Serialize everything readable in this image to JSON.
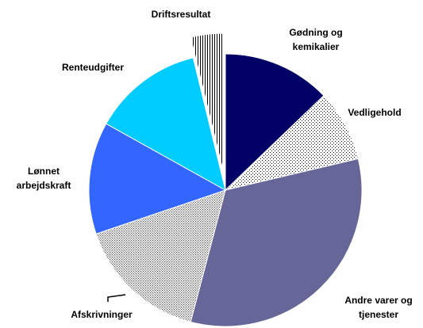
{
  "chart_data": {
    "type": "pie",
    "categories": [
      "Gødning og kemikalier",
      "Vedligehold",
      "Andre varer og tjenester",
      "Afskrivninger",
      "Lønnet arbejdskraft",
      "Renteudgifter",
      "Driftsresultat"
    ],
    "values": [
      12.8,
      8.5,
      32.8,
      15.7,
      13.3,
      13.1,
      3.8
    ],
    "colors": [
      "#000066",
      "#ffffff",
      "#666699",
      "#ffffff",
      "#3366ff",
      "#00ccff",
      "#ffffff"
    ],
    "patterns": [
      null,
      "dots",
      null,
      "dense-dots",
      null,
      null,
      "stripes"
    ],
    "exploded": [
      false,
      false,
      false,
      false,
      false,
      false,
      true
    ]
  }
}
